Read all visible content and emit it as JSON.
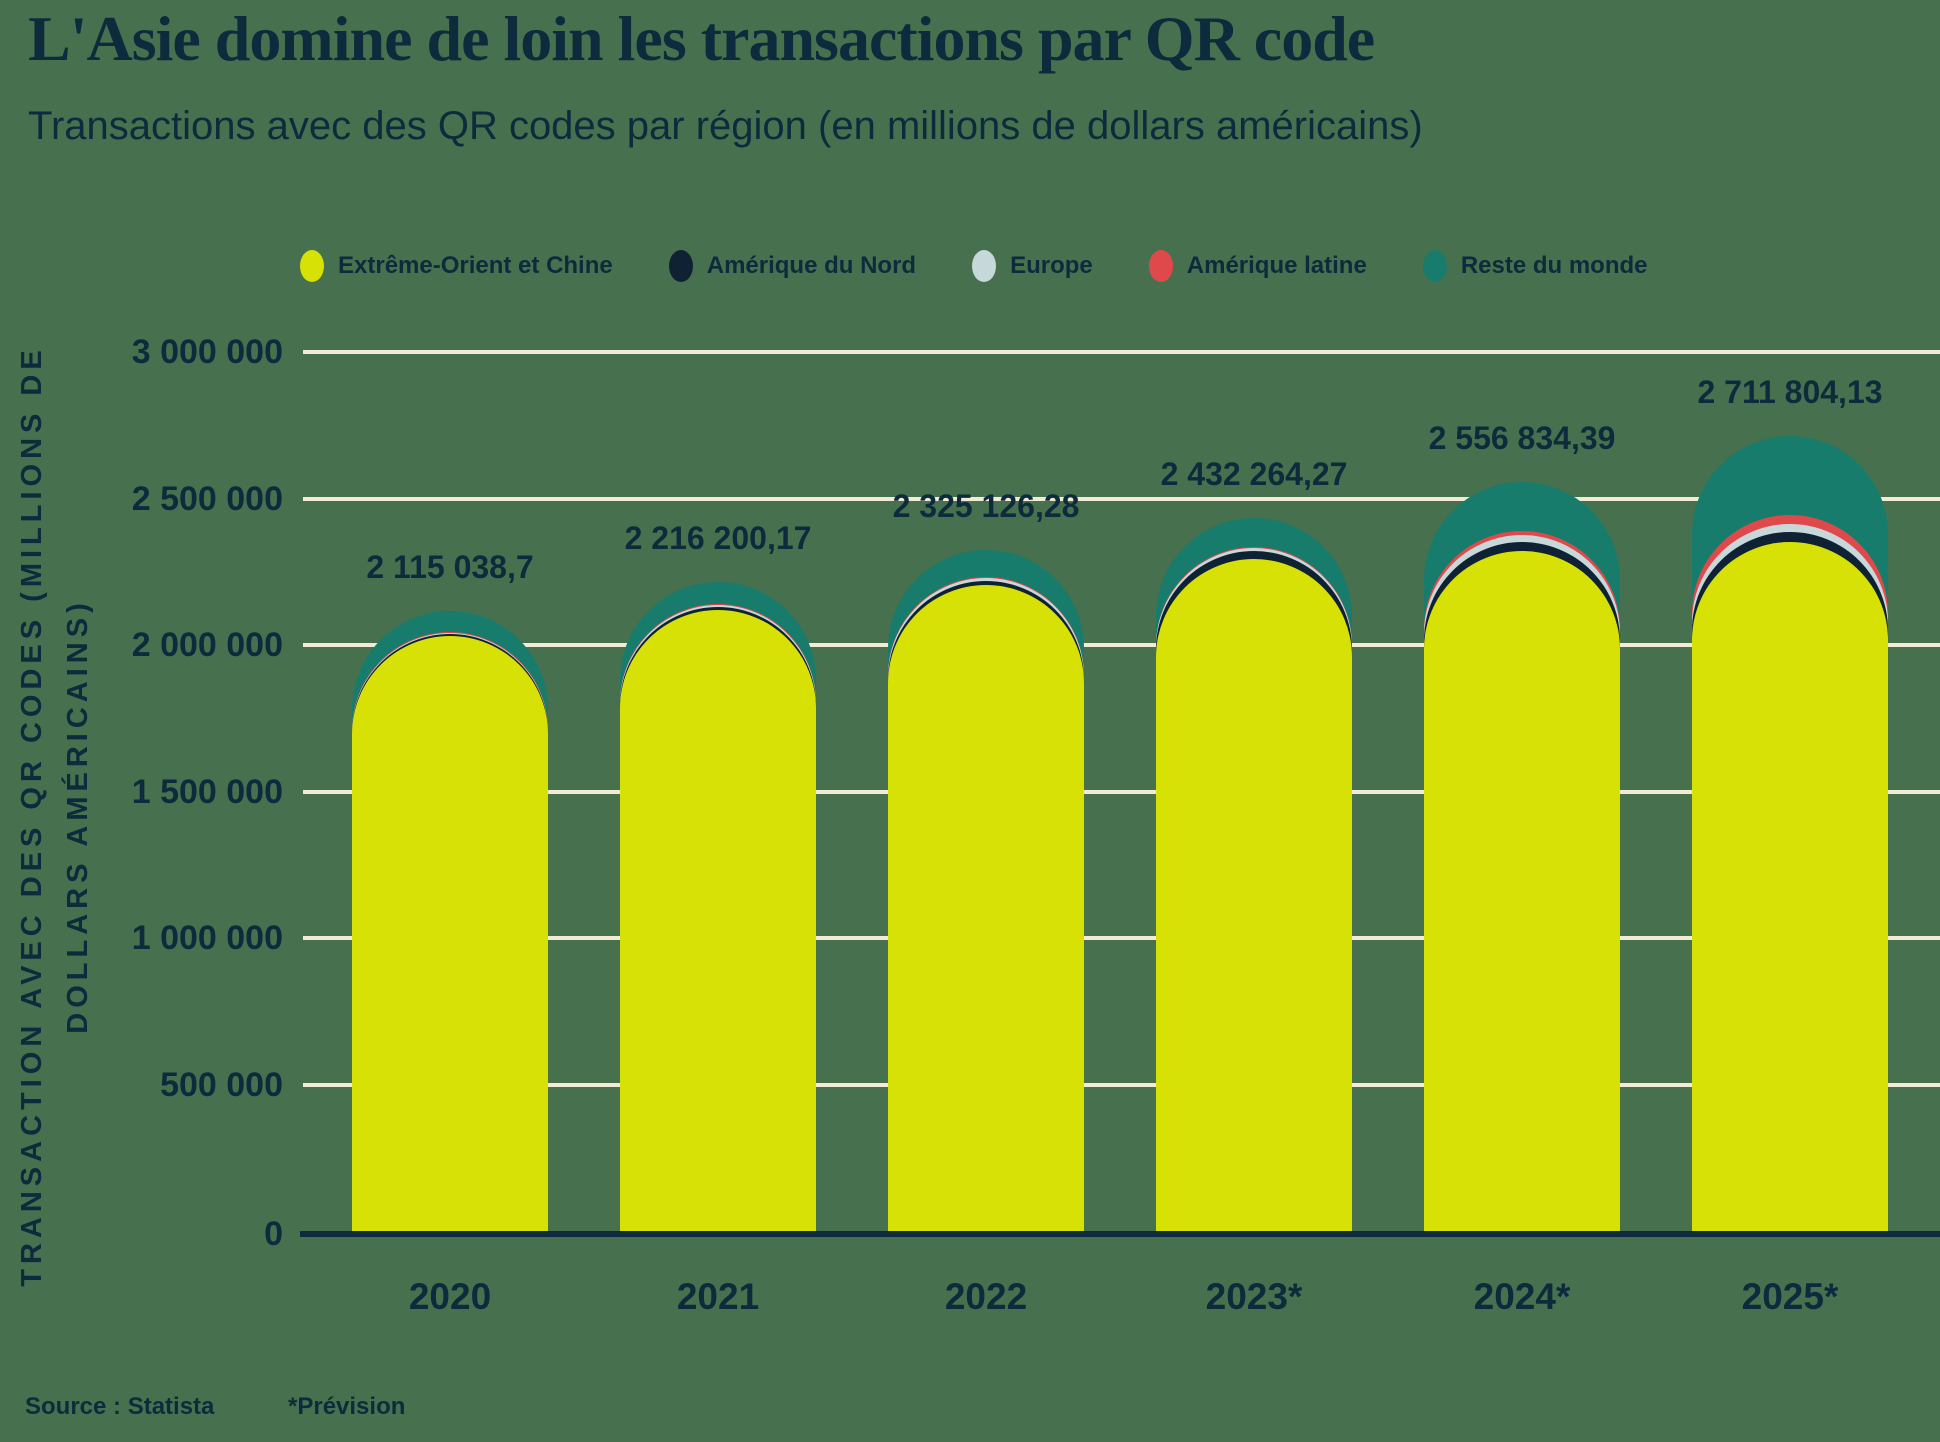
{
  "page": {
    "background": "#47714E",
    "text_color": "#0D2B3C"
  },
  "header": {
    "title": "L'Asie domine de loin les transactions par QR code",
    "subtitle": "Transactions avec des QR codes par région (en millions de dollars américains)"
  },
  "legend": {
    "items": [
      {
        "label": "Extrême-Orient et Chine",
        "color": "#D8E105"
      },
      {
        "label": "Amérique du Nord",
        "color": "#0E2234"
      },
      {
        "label": "Europe",
        "color": "#C6D8D9"
      },
      {
        "label": "Amérique latine",
        "color": "#E0494B"
      },
      {
        "label": "Reste du monde",
        "color": "#177C6B"
      }
    ]
  },
  "chart_data": {
    "type": "bar",
    "stacked": true,
    "rounded_caps": true,
    "categories": [
      "2020",
      "2021",
      "2022",
      "2023*",
      "2024*",
      "2025*"
    ],
    "series": [
      {
        "name": "Extrême-Orient et Chine",
        "color": "#D8E105",
        "values": [
          2030000,
          2120000,
          2205000,
          2295000,
          2320000,
          2352000
        ]
      },
      {
        "name": "Amérique du Nord",
        "color": "#0E2234",
        "values": [
          6000,
          8000,
          12000,
          26000,
          30000,
          34000
        ]
      },
      {
        "name": "Europe",
        "color": "#C6D8D9",
        "values": [
          5000,
          7000,
          10000,
          9000,
          24000,
          26000
        ]
      },
      {
        "name": "Amérique latine",
        "color": "#E0494B",
        "values": [
          3038.7,
          4200.17,
          6126.28,
          5264.27,
          14834.39,
          32804.13
        ]
      },
      {
        "name": "Reste du monde",
        "color": "#177C6B",
        "values": [
          71000,
          77000,
          92000,
          97000,
          168000,
          267000
        ]
      }
    ],
    "totals": [
      2115038.7,
      2216200.17,
      2325126.28,
      2432264.27,
      2556834.39,
      2711804.13
    ],
    "total_labels": [
      "2 115 038,7",
      "2 216 200,17",
      "2 325 126,28",
      "2 432 264,27",
      "2 556 834,39",
      "2 711 804,13"
    ],
    "ylabel": "TRANSACTION AVEC DES QR CODES (MILLIONS DE DOLLARS AMÉRICAINS)",
    "ylabel_lines": [
      "TRANSACTION AVEC DES QR CODES (MILLIONS DE",
      "DOLLARS AMÉRICAINS)"
    ],
    "yticks": [
      {
        "value": 3000000,
        "label": "3 000 000"
      },
      {
        "value": 2500000,
        "label": "2 500 000"
      },
      {
        "value": 2000000,
        "label": "2 000 000"
      },
      {
        "value": 1500000,
        "label": "1 500 000"
      },
      {
        "value": 1000000,
        "label": "1 000 000"
      },
      {
        "value": 500000,
        "label": "500 000"
      },
      {
        "value": 0,
        "label": "0"
      }
    ],
    "ylim": [
      0,
      3000000
    ],
    "grid": true,
    "gridline_color": "#F2ECD6",
    "axis_color": "#0D2B3C",
    "legend_position": "top"
  },
  "footer": {
    "source": "Source : Statista",
    "note": "*Prévision"
  }
}
